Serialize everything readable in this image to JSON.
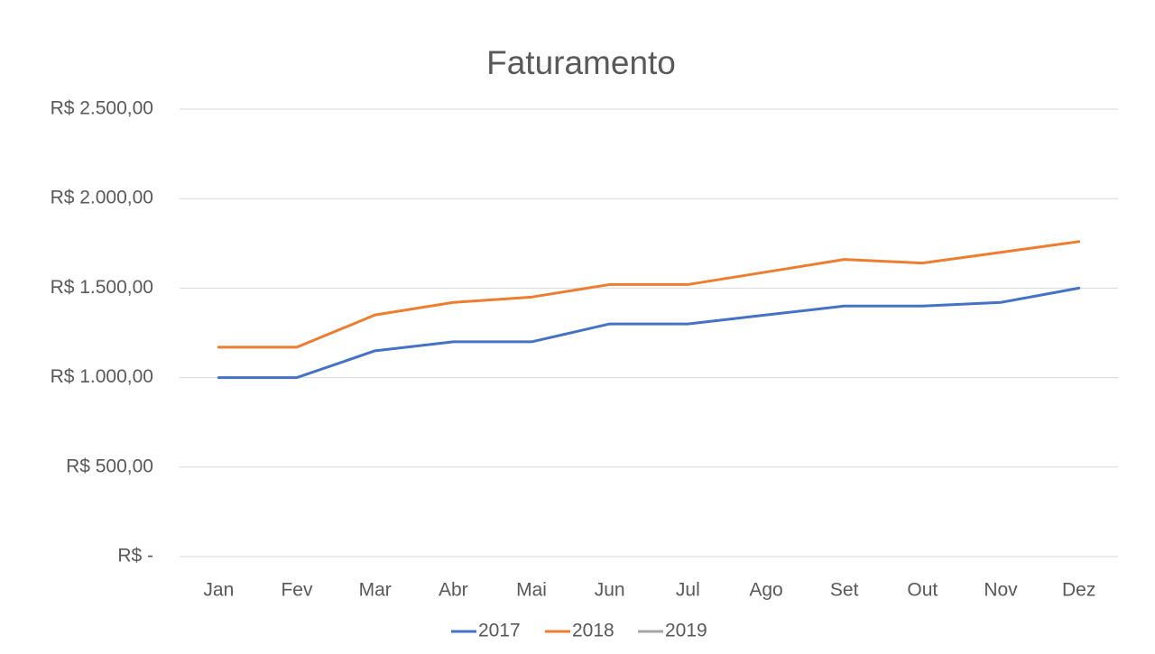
{
  "chart_data": {
    "type": "line",
    "title": "Faturamento",
    "categories": [
      "Jan",
      "Fev",
      "Mar",
      "Abr",
      "Mai",
      "Jun",
      "Jul",
      "Ago",
      "Set",
      "Out",
      "Nov",
      "Dez"
    ],
    "series": [
      {
        "name": "2017",
        "color": "#4472c4",
        "values": [
          1000,
          1000,
          1150,
          1200,
          1200,
          1300,
          1300,
          1350,
          1400,
          1400,
          1420,
          1500
        ]
      },
      {
        "name": "2018",
        "color": "#ed7d31",
        "values": [
          1170,
          1170,
          1350,
          1420,
          1450,
          1520,
          1520,
          1590,
          1660,
          1640,
          1700,
          1760
        ]
      },
      {
        "name": "2019",
        "color": "#a5a5a5",
        "values": [
          null,
          null,
          null,
          null,
          null,
          null,
          null,
          null,
          null,
          null,
          null,
          null
        ]
      }
    ],
    "ylim": [
      0,
      2500
    ],
    "yticks": [
      {
        "value": 0,
        "label": "R$ -"
      },
      {
        "value": 500,
        "label": "R$ 500,00"
      },
      {
        "value": 1000,
        "label": "R$ 1.000,00"
      },
      {
        "value": 1500,
        "label": "R$ 1.500,00"
      },
      {
        "value": 2000,
        "label": "R$ 2.000,00"
      },
      {
        "value": 2500,
        "label": "R$ 2.500,00"
      }
    ],
    "grid": true,
    "legend": "bottom"
  }
}
